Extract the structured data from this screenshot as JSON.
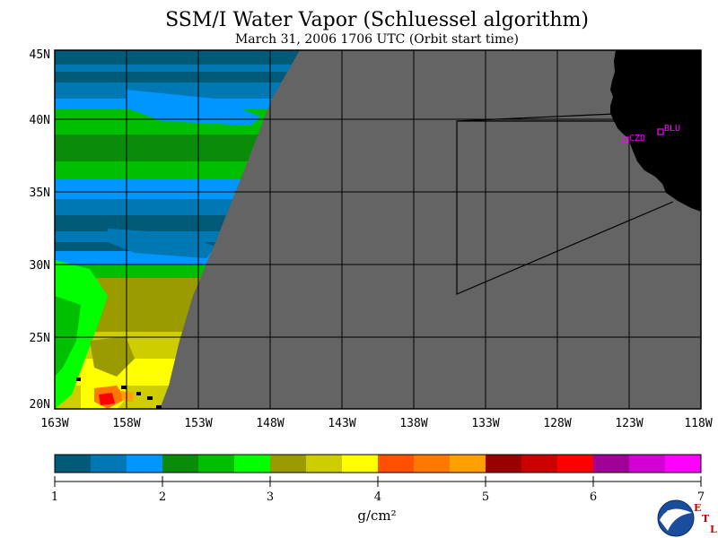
{
  "title": "SSM/I Water Vapor (Schluessel algorithm)",
  "subtitle": "March 31, 2006  1706 UTC  (Orbit start time)",
  "lat_labels": [
    "45N",
    "40N",
    "35N",
    "30N",
    "25N",
    "20N"
  ],
  "lon_labels": [
    "163W",
    "158W",
    "153W",
    "148W",
    "143W",
    "138W",
    "133W",
    "128W",
    "123W",
    "118W"
  ],
  "stations": [
    {
      "name": "CZD",
      "lon": -123.1,
      "lat": 38.6
    },
    {
      "name": "BLU",
      "lon": -120.9,
      "lat": 39.3
    }
  ],
  "colorbar": {
    "unit": "g/cm²",
    "tick_labels": [
      "1",
      "2",
      "3",
      "4",
      "5",
      "6",
      "7"
    ],
    "colors": [
      "#005a78",
      "#0078b4",
      "#0096ff",
      "#0a8c0a",
      "#00be00",
      "#00ff00",
      "#9b9b00",
      "#cdcd00",
      "#ffff00",
      "#ff5000",
      "#ff7800",
      "#ffa000",
      "#9b0000",
      "#cd0000",
      "#ff0000",
      "#a00096",
      "#d200d2",
      "#ff00ff"
    ]
  },
  "colors": {
    "no_data": "#646464",
    "land": "#000000",
    "station": "#ff00ff"
  },
  "logo": {
    "text": "NOAA",
    "etl_letters": [
      "E",
      "T",
      "L"
    ]
  }
}
